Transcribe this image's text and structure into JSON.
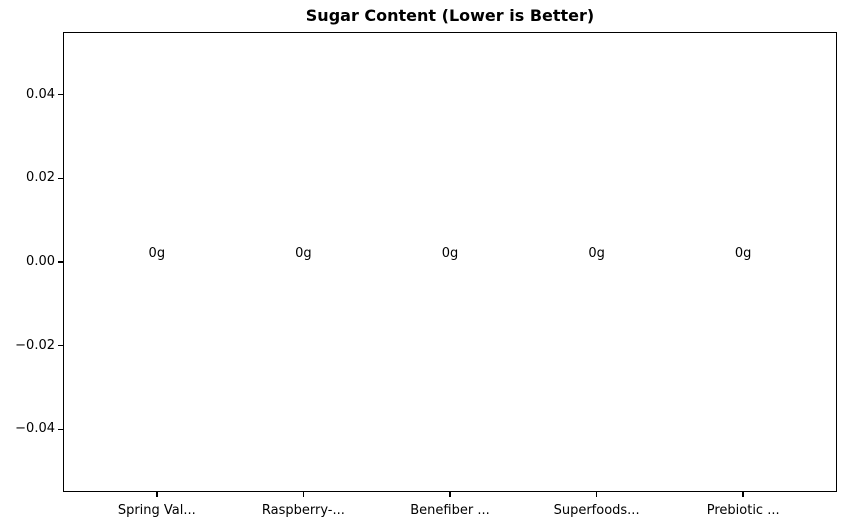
{
  "chart_data": {
    "type": "bar",
    "title": "Sugar Content (Lower is Better)",
    "categories": [
      "Spring Val...",
      "Raspberry-...",
      "Benefiber ...",
      "Superfoods...",
      "Prebiotic ..."
    ],
    "values": [
      0,
      0,
      0,
      0,
      0
    ],
    "bar_labels": [
      "0g",
      "0g",
      "0g",
      "0g",
      "0g"
    ],
    "xlabel": "",
    "ylabel": "",
    "yticks": [
      0.04,
      0.02,
      0.0,
      -0.02,
      -0.04
    ],
    "ytick_labels": [
      "0.04",
      "0.02",
      "0.00",
      "−0.02",
      "−0.04"
    ],
    "ylim": [
      -0.055,
      0.055
    ],
    "grid": false,
    "legend": null,
    "colors": {
      "background": "#ffffff",
      "text": "#000000",
      "spine": "#000000"
    }
  }
}
